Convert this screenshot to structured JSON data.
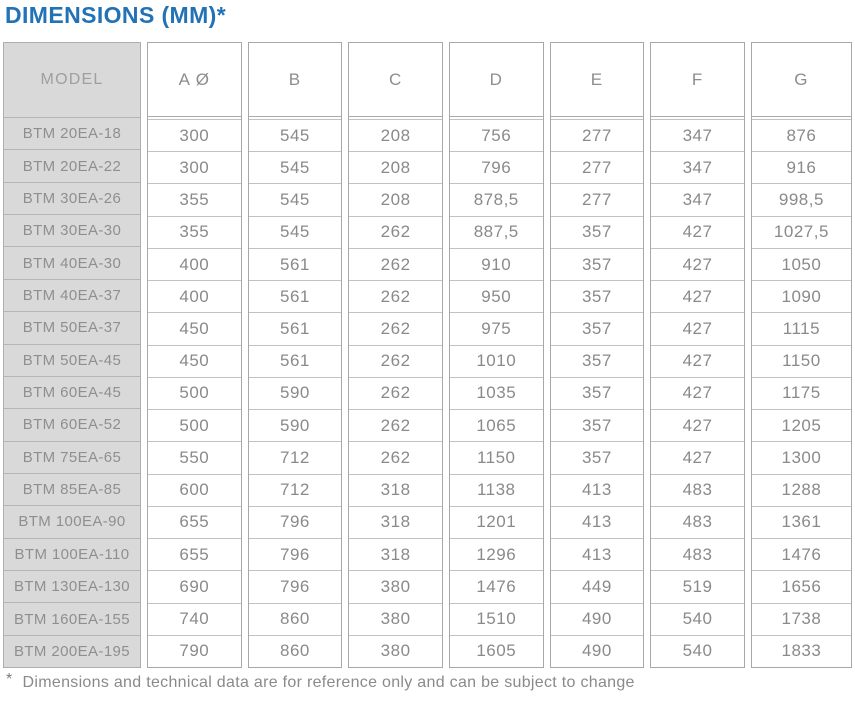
{
  "page": {
    "title": "DIMENSIONS (MM)*",
    "footnote_marker": "*",
    "footnote_text": "Dimensions and technical data are for reference only and can be subject to change"
  },
  "colors": {
    "title_blue": "#2273b6",
    "model_column_bg": "#d9d9d9",
    "box_border": "#a8a8a8",
    "row_separator": "#c2c2c2",
    "cell_text": "#8a8a8a"
  },
  "table": {
    "model_header": "MODEL",
    "column_headers": [
      "A Ø",
      "B",
      "C",
      "D",
      "E",
      "F",
      "G"
    ],
    "rows": [
      {
        "model": "BTM 20EA-18",
        "values": [
          "300",
          "545",
          "208",
          "756",
          "277",
          "347",
          "876"
        ]
      },
      {
        "model": "BTM 20EA-22",
        "values": [
          "300",
          "545",
          "208",
          "796",
          "277",
          "347",
          "916"
        ]
      },
      {
        "model": "BTM 30EA-26",
        "values": [
          "355",
          "545",
          "208",
          "878,5",
          "277",
          "347",
          "998,5"
        ]
      },
      {
        "model": "BTM 30EA-30",
        "values": [
          "355",
          "545",
          "262",
          "887,5",
          "357",
          "427",
          "1027,5"
        ]
      },
      {
        "model": "BTM 40EA-30",
        "values": [
          "400",
          "561",
          "262",
          "910",
          "357",
          "427",
          "1050"
        ]
      },
      {
        "model": "BTM 40EA-37",
        "values": [
          "400",
          "561",
          "262",
          "950",
          "357",
          "427",
          "1090"
        ]
      },
      {
        "model": "BTM 50EA-37",
        "values": [
          "450",
          "561",
          "262",
          "975",
          "357",
          "427",
          "1115"
        ]
      },
      {
        "model": "BTM 50EA-45",
        "values": [
          "450",
          "561",
          "262",
          "1010",
          "357",
          "427",
          "1150"
        ]
      },
      {
        "model": "BTM 60EA-45",
        "values": [
          "500",
          "590",
          "262",
          "1035",
          "357",
          "427",
          "1175"
        ]
      },
      {
        "model": "BTM 60EA-52",
        "values": [
          "500",
          "590",
          "262",
          "1065",
          "357",
          "427",
          "1205"
        ]
      },
      {
        "model": "BTM 75EA-65",
        "values": [
          "550",
          "712",
          "262",
          "1150",
          "357",
          "427",
          "1300"
        ]
      },
      {
        "model": "BTM 85EA-85",
        "values": [
          "600",
          "712",
          "318",
          "1138",
          "413",
          "483",
          "1288"
        ]
      },
      {
        "model": "BTM 100EA-90",
        "values": [
          "655",
          "796",
          "318",
          "1201",
          "413",
          "483",
          "1361"
        ]
      },
      {
        "model": "BTM 100EA-110",
        "values": [
          "655",
          "796",
          "318",
          "1296",
          "413",
          "483",
          "1476"
        ]
      },
      {
        "model": "BTM 130EA-130",
        "values": [
          "690",
          "796",
          "380",
          "1476",
          "449",
          "519",
          "1656"
        ]
      },
      {
        "model": "BTM 160EA-155",
        "values": [
          "740",
          "860",
          "380",
          "1510",
          "490",
          "540",
          "1738"
        ]
      },
      {
        "model": "BTM 200EA-195",
        "values": [
          "790",
          "860",
          "380",
          "1605",
          "490",
          "540",
          "1833"
        ]
      }
    ]
  }
}
